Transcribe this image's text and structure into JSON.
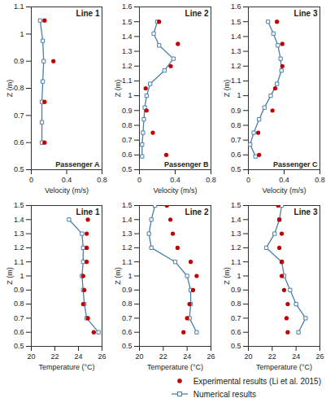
{
  "chart_data": [
    {
      "type": "line",
      "title": "Line 1",
      "annotations": [
        "Passenger A"
      ],
      "x_label": "Velocity (m/s)",
      "y_label": "Z (m)",
      "xlim": [
        0,
        0.8
      ],
      "xticks": [
        0,
        0.4,
        0.8
      ],
      "ylim": [
        0.5,
        1.1
      ],
      "yticks": [
        0.5,
        0.6,
        0.7,
        0.8,
        0.9,
        1,
        1.1
      ],
      "series": [
        {
          "name": "Experimental results (Li et al. 2015)",
          "type": "scatter",
          "marker": "circle",
          "color": "#c00000",
          "x": [
            0.15,
            0.25,
            0.15,
            0.15
          ],
          "values": [
            1.05,
            0.9,
            0.75,
            0.6
          ]
        },
        {
          "name": "Numerical results",
          "type": "line",
          "marker": "square",
          "color": "#4a7fa8",
          "x": [
            0.1,
            0.13,
            0.14,
            0.13,
            0.12,
            0.12,
            0.12
          ],
          "values": [
            1.05,
            0.975,
            0.9,
            0.825,
            0.75,
            0.675,
            0.6
          ]
        }
      ]
    },
    {
      "type": "line",
      "title": "Line 2",
      "annotations": [
        "Passenger B"
      ],
      "x_label": "Velocity (m/s)",
      "y_label": "Z (m)",
      "xlim": [
        0,
        0.8
      ],
      "xticks": [
        0,
        0.4,
        0.8
      ],
      "ylim": [
        0.5,
        1.6
      ],
      "yticks": [
        0.5,
        0.6,
        0.7,
        0.8,
        0.9,
        1,
        1.1,
        1.2,
        1.3,
        1.4,
        1.5,
        1.6
      ],
      "series": [
        {
          "name": "Experimental results (Li et al. 2015)",
          "type": "scatter",
          "marker": "circle",
          "color": "#c00000",
          "x": [
            0.22,
            0.43,
            0.35,
            0.07,
            0.08,
            0.15,
            0.3
          ],
          "values": [
            1.5,
            1.35,
            1.2,
            1.05,
            0.9,
            0.75,
            0.6
          ]
        },
        {
          "name": "Numerical results",
          "type": "line",
          "marker": "square",
          "color": "#4a7fa8",
          "x": [
            0.2,
            0.16,
            0.22,
            0.38,
            0.28,
            0.12,
            0.08,
            0.06,
            0.05,
            0.04,
            0.03,
            0.03
          ],
          "values": [
            1.5,
            1.42,
            1.34,
            1.25,
            1.17,
            1.08,
            1.0,
            0.92,
            0.84,
            0.75,
            0.67,
            0.59
          ]
        }
      ]
    },
    {
      "type": "line",
      "title": "Line 3",
      "annotations": [
        "Passenger C"
      ],
      "x_label": "Velocity (m/s)",
      "y_label": "Z (m)",
      "xlim": [
        0,
        0.8
      ],
      "xticks": [
        0,
        0.4,
        0.8
      ],
      "ylim": [
        0.5,
        1.6
      ],
      "yticks": [
        0.5,
        0.6,
        0.7,
        0.8,
        0.9,
        1,
        1.1,
        1.2,
        1.3,
        1.4,
        1.5,
        1.6
      ],
      "series": [
        {
          "name": "Experimental results (Li et al. 2015)",
          "type": "scatter",
          "marker": "circle",
          "color": "#c00000",
          "x": [
            0.32,
            0.38,
            0.38,
            0.3,
            0.27,
            0.11,
            0.12
          ],
          "values": [
            1.5,
            1.35,
            1.2,
            1.05,
            0.9,
            0.75,
            0.6
          ]
        },
        {
          "name": "Numerical results",
          "type": "line",
          "marker": "square",
          "color": "#4a7fa8",
          "x": [
            0.22,
            0.28,
            0.33,
            0.36,
            0.37,
            0.32,
            0.25,
            0.18,
            0.12,
            0.06,
            0.02,
            0.08
          ],
          "values": [
            1.5,
            1.42,
            1.34,
            1.25,
            1.17,
            1.08,
            1.0,
            0.92,
            0.84,
            0.75,
            0.67,
            0.59
          ]
        }
      ]
    },
    {
      "type": "line",
      "title": "Line 1",
      "x_label": "Temperature (°C)",
      "y_label": "Z (m)",
      "xlim": [
        20,
        26
      ],
      "xticks": [
        20,
        22,
        24,
        26
      ],
      "ylim": [
        0.5,
        1.5
      ],
      "yticks": [
        0.5,
        0.6,
        0.7,
        0.8,
        0.9,
        1,
        1.1,
        1.2,
        1.3,
        1.4,
        1.5
      ],
      "series": [
        {
          "name": "Experimental results (Li et al. 2015)",
          "type": "scatter",
          "marker": "circle",
          "color": "#c00000",
          "x": [
            24.8,
            24.7,
            24.7,
            24.7,
            24.4,
            24.5,
            24.4,
            24.8,
            25.3
          ],
          "values": [
            1.4,
            1.3,
            1.2,
            1.1,
            1.0,
            0.9,
            0.8,
            0.7,
            0.6
          ]
        },
        {
          "name": "Numerical results",
          "type": "line",
          "marker": "square",
          "color": "#4a7fa8",
          "x": [
            23.2,
            24.3,
            24.4,
            24.4,
            24.3,
            24.4,
            24.5,
            24.7,
            25.7
          ],
          "values": [
            1.4,
            1.3,
            1.2,
            1.1,
            1.0,
            0.9,
            0.8,
            0.7,
            0.6
          ]
        }
      ]
    },
    {
      "type": "line",
      "title": "Line 2",
      "x_label": "Temperature (°C)",
      "y_label": "Z (m)",
      "xlim": [
        20,
        26
      ],
      "xticks": [
        20,
        22,
        24,
        26
      ],
      "ylim": [
        0.5,
        1.5
      ],
      "yticks": [
        0.5,
        0.6,
        0.7,
        0.8,
        0.9,
        1,
        1.1,
        1.2,
        1.3,
        1.4,
        1.5
      ],
      "series": [
        {
          "name": "Experimental results (Li et al. 2015)",
          "type": "scatter",
          "marker": "circle",
          "color": "#c00000",
          "x": [
            22.3,
            22.6,
            22.8,
            23.2,
            24.3,
            24.8,
            24.5,
            24.2,
            24.0,
            23.7
          ],
          "values": [
            1.5,
            1.4,
            1.3,
            1.2,
            1.1,
            1.0,
            0.9,
            0.8,
            0.7,
            0.6
          ]
        },
        {
          "name": "Numerical results",
          "type": "line",
          "marker": "square",
          "color": "#4a7fa8",
          "x": [
            21.3,
            21.0,
            20.8,
            21.0,
            23.0,
            24.0,
            24.3,
            24.3,
            24.2,
            24.8
          ],
          "values": [
            1.5,
            1.4,
            1.3,
            1.2,
            1.1,
            1.0,
            0.9,
            0.8,
            0.7,
            0.6
          ]
        }
      ]
    },
    {
      "type": "line",
      "title": "Line 3",
      "x_label": "Temperature (°C)",
      "y_label": "Z (m)",
      "legend": "bottom right",
      "xlim": [
        20,
        26
      ],
      "xticks": [
        20,
        22,
        24,
        26
      ],
      "ylim": [
        0.5,
        1.5
      ],
      "yticks": [
        0.5,
        0.6,
        0.7,
        0.8,
        0.9,
        1,
        1.1,
        1.2,
        1.3,
        1.4,
        1.5
      ],
      "series": [
        {
          "name": "Experimental results (Li et al. 2015)",
          "type": "scatter",
          "marker": "circle",
          "color": "#c00000",
          "x": [
            22.5,
            22.6,
            22.8,
            22.6,
            22.8,
            22.8,
            23.0,
            23.3,
            23.2,
            23.3
          ],
          "values": [
            1.5,
            1.4,
            1.3,
            1.2,
            1.1,
            1.0,
            0.9,
            0.8,
            0.7,
            0.6
          ]
        },
        {
          "name": "Numerical results",
          "type": "line",
          "marker": "square",
          "color": "#4a7fa8",
          "x": [
            22.8,
            22.6,
            22.2,
            21.5,
            22.8,
            23.0,
            23.5,
            24.0,
            24.8,
            24.2
          ],
          "values": [
            1.5,
            1.4,
            1.3,
            1.2,
            1.1,
            1.0,
            0.9,
            0.8,
            0.7,
            0.6
          ]
        }
      ]
    }
  ]
}
